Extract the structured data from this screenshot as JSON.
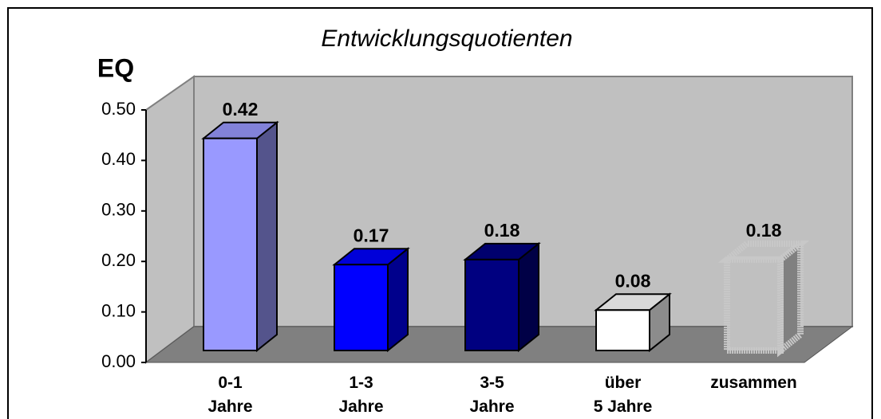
{
  "chart_data": {
    "type": "bar3d",
    "title": "Entwicklungsquotienten",
    "y_label": "EQ",
    "categories": [
      "0-1\nJahre",
      "1-3\nJahre",
      "3-5\nJahre",
      "über\n5 Jahre",
      "zusammen"
    ],
    "values": [
      0.42,
      0.17,
      0.18,
      0.08,
      0.18
    ],
    "colors": [
      "#9999ff",
      "#0000ff",
      "#000080",
      "#ffffff",
      "#e0e0e0"
    ],
    "ylim": [
      0,
      0.5
    ],
    "yticks": [
      {
        "value": 0,
        "label": "0.00"
      },
      {
        "value": 0.1,
        "label": "0.10"
      },
      {
        "value": 0.2,
        "label": "0.20"
      },
      {
        "value": 0.3,
        "label": "0.30"
      },
      {
        "value": 0.4,
        "label": "0.40"
      },
      {
        "value": 0.5,
        "label": "0.50"
      }
    ],
    "grid": false
  }
}
